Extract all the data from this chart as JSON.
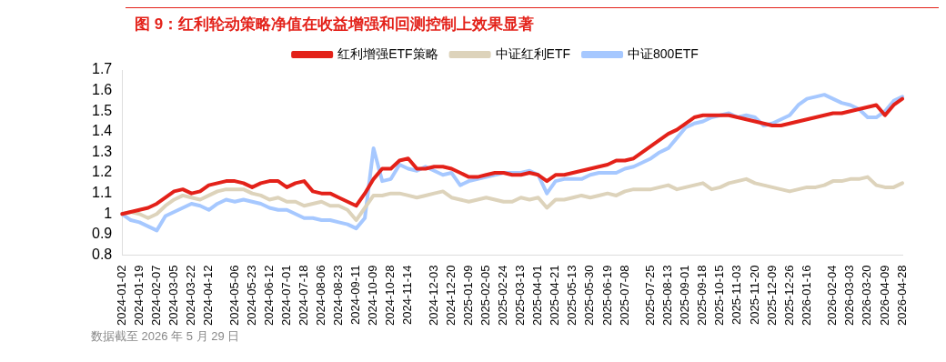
{
  "chart_data": {
    "type": "line",
    "title": "图 9：红利轮动策略净值在收益增强和回测控制上效果显著",
    "categories": [
      "2024-01-02",
      null,
      "2024-01-19",
      null,
      "2024-02-07",
      null,
      "2024-03-05",
      null,
      "2024-03-22",
      null,
      "2024-04-12",
      null,
      null,
      "2024-05-06",
      null,
      "2024-05-23",
      null,
      "2024-06-12",
      null,
      "2024-07-01",
      null,
      "2024-07-18",
      null,
      "2024-08-06",
      null,
      "2024-08-23",
      null,
      "2024-09-11",
      null,
      "2024-10-09",
      null,
      "2024-10-28",
      null,
      "2024-11-14",
      null,
      null,
      "2024-12-03",
      null,
      "2024-12-20",
      null,
      "2025-01-09",
      null,
      "2025-02-05",
      null,
      "2025-02-24",
      null,
      "2025-03-13",
      null,
      "2025-04-01",
      null,
      "2025-04-21",
      null,
      "2025-05-13",
      null,
      "2025-05-30",
      null,
      "2025-06-19",
      null,
      "2025-07-08",
      null,
      null,
      "2025-07-25",
      null,
      "2025-08-13",
      null,
      "2025-09-01",
      null,
      "2025-09-18",
      null,
      "2025-10-15",
      null,
      "2025-11-03",
      null,
      "2025-11-20",
      null,
      "2025-12-09",
      null,
      "2025-12-26",
      null,
      "2026-01-16",
      null,
      null,
      "2026-02-04",
      null,
      "2026-03-03",
      null,
      "2026-03-20",
      null,
      "2026-04-09",
      null,
      "2026-04-28"
    ],
    "series": [
      {
        "name": "红利增强ETF策略",
        "color": "#e32119",
        "values": [
          1.0,
          1.01,
          1.02,
          1.03,
          1.05,
          1.08,
          1.11,
          1.12,
          1.1,
          1.11,
          1.14,
          1.15,
          1.16,
          1.16,
          1.15,
          1.13,
          1.15,
          1.16,
          1.16,
          1.13,
          1.15,
          1.16,
          1.11,
          1.1,
          1.1,
          1.08,
          1.06,
          1.04,
          1.1,
          1.17,
          1.22,
          1.22,
          1.26,
          1.27,
          1.22,
          1.22,
          1.23,
          1.23,
          1.22,
          1.2,
          1.18,
          1.18,
          1.19,
          1.2,
          1.2,
          1.19,
          1.19,
          1.2,
          1.19,
          1.16,
          1.19,
          1.19,
          1.2,
          1.21,
          1.22,
          1.23,
          1.24,
          1.26,
          1.26,
          1.27,
          1.3,
          1.33,
          1.36,
          1.39,
          1.41,
          1.44,
          1.47,
          1.48,
          1.48,
          1.48,
          1.48,
          1.47,
          1.46,
          1.45,
          1.44,
          1.43,
          1.43,
          1.44,
          1.45,
          1.46,
          1.47,
          1.48,
          1.49,
          1.49,
          1.5,
          1.51,
          1.52,
          1.53,
          1.48,
          1.53,
          1.56
        ]
      },
      {
        "name": "中证红利ETF",
        "color": "#ddd3bb",
        "values": [
          1.0,
          1.01,
          1.0,
          0.98,
          1.0,
          1.04,
          1.07,
          1.09,
          1.08,
          1.07,
          1.09,
          1.11,
          1.12,
          1.12,
          1.12,
          1.1,
          1.09,
          1.07,
          1.08,
          1.06,
          1.06,
          1.04,
          1.05,
          1.06,
          1.04,
          1.04,
          1.02,
          0.97,
          1.03,
          1.09,
          1.09,
          1.1,
          1.1,
          1.09,
          1.08,
          1.09,
          1.1,
          1.11,
          1.08,
          1.07,
          1.06,
          1.07,
          1.08,
          1.07,
          1.06,
          1.06,
          1.08,
          1.07,
          1.08,
          1.03,
          1.07,
          1.07,
          1.08,
          1.09,
          1.08,
          1.09,
          1.1,
          1.09,
          1.11,
          1.12,
          1.12,
          1.12,
          1.13,
          1.14,
          1.12,
          1.13,
          1.14,
          1.15,
          1.12,
          1.13,
          1.15,
          1.16,
          1.17,
          1.15,
          1.14,
          1.13,
          1.12,
          1.11,
          1.12,
          1.13,
          1.13,
          1.14,
          1.16,
          1.16,
          1.17,
          1.17,
          1.18,
          1.14,
          1.13,
          1.13,
          1.15
        ]
      },
      {
        "name": "中证800ETF",
        "color": "#a6c8ff",
        "values": [
          1.0,
          0.97,
          0.96,
          0.94,
          0.92,
          0.99,
          1.01,
          1.03,
          1.05,
          1.04,
          1.02,
          1.05,
          1.07,
          1.06,
          1.07,
          1.06,
          1.05,
          1.03,
          1.02,
          1.02,
          1.0,
          0.98,
          0.98,
          0.97,
          0.97,
          0.96,
          0.95,
          0.93,
          0.98,
          1.32,
          1.16,
          1.17,
          1.24,
          1.22,
          1.21,
          1.23,
          1.21,
          1.19,
          1.2,
          1.14,
          1.16,
          1.17,
          1.18,
          1.19,
          1.2,
          1.2,
          1.2,
          1.21,
          1.19,
          1.1,
          1.16,
          1.17,
          1.17,
          1.17,
          1.19,
          1.2,
          1.2,
          1.2,
          1.22,
          1.23,
          1.25,
          1.27,
          1.3,
          1.32,
          1.37,
          1.42,
          1.44,
          1.45,
          1.47,
          1.48,
          1.49,
          1.47,
          1.48,
          1.47,
          1.43,
          1.44,
          1.46,
          1.48,
          1.53,
          1.56,
          1.57,
          1.58,
          1.56,
          1.54,
          1.53,
          1.51,
          1.47,
          1.47,
          1.5,
          1.55,
          1.57
        ]
      }
    ],
    "ylim": [
      0.8,
      1.7
    ],
    "yticks": [
      0.8,
      0.9,
      1,
      1.1,
      1.2,
      1.3,
      1.4,
      1.5,
      1.6,
      1.7
    ],
    "grid": false,
    "legend": "top",
    "marker": "none",
    "line_style": "solid",
    "annotations": [
      "数据截至 2026 年 5 月 29 日"
    ]
  }
}
